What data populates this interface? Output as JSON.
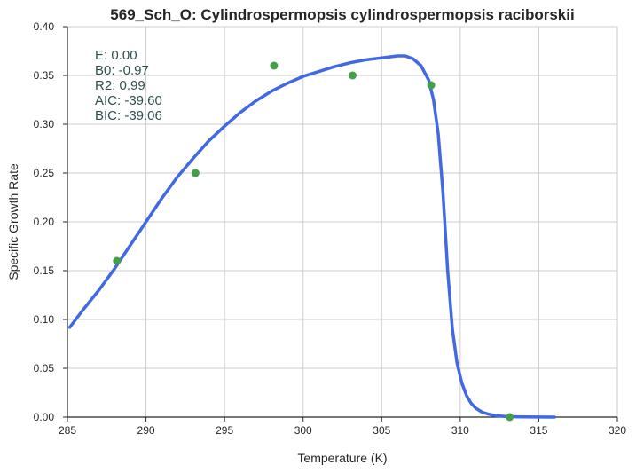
{
  "chart_data": {
    "type": "line",
    "title": "569_Sch_O: Cylindrospermopsis cylindrospermopsis raciborskii",
    "xlabel": "Temperature (K)",
    "ylabel": "Specific Growth Rate",
    "xlim": [
      285,
      320
    ],
    "ylim": [
      0.0,
      0.4
    ],
    "xticks": [
      285,
      290,
      295,
      300,
      305,
      310,
      315,
      320
    ],
    "xtick_labels": [
      "285",
      "290",
      "295",
      "300",
      "305",
      "310",
      "315",
      "320"
    ],
    "yticks": [
      0.0,
      0.05,
      0.1,
      0.15,
      0.2,
      0.25,
      0.3,
      0.35,
      0.4
    ],
    "ytick_labels": [
      "0.00",
      "0.05",
      "0.10",
      "0.15",
      "0.20",
      "0.25",
      "0.30",
      "0.35",
      "0.40"
    ],
    "grid": true,
    "annotations": [
      "E:  0.00",
      "B0:  -0.97",
      "R2:  0.99",
      "AIC: -39.60",
      "BIC: -39.06"
    ],
    "series": [
      {
        "kind": "scatter",
        "color": "#43a047",
        "x": [
          288.15,
          293.15,
          298.15,
          303.15,
          308.15,
          313.15
        ],
        "y": [
          0.16,
          0.25,
          0.36,
          0.35,
          0.34,
          0.0
        ]
      },
      {
        "kind": "line",
        "color": "#4169e1",
        "x": [
          285.15,
          286.0,
          287.0,
          288.0,
          289.0,
          290.0,
          291.0,
          292.0,
          293.0,
          294.0,
          295.0,
          296.0,
          297.0,
          298.0,
          299.0,
          300.0,
          301.0,
          302.0,
          303.0,
          304.0,
          305.0,
          305.5,
          306.0,
          306.5,
          307.0,
          307.5,
          308.0,
          308.3,
          308.6,
          308.9,
          309.2,
          309.5,
          309.8,
          310.1,
          310.4,
          310.7,
          311.0,
          311.4,
          311.8,
          312.3,
          313.0,
          314.0,
          315.0,
          316.0
        ],
        "y": [
          0.092,
          0.11,
          0.13,
          0.152,
          0.176,
          0.2,
          0.224,
          0.246,
          0.265,
          0.283,
          0.298,
          0.312,
          0.324,
          0.334,
          0.342,
          0.349,
          0.354,
          0.359,
          0.363,
          0.366,
          0.368,
          0.369,
          0.37,
          0.37,
          0.367,
          0.36,
          0.345,
          0.325,
          0.29,
          0.23,
          0.15,
          0.09,
          0.055,
          0.035,
          0.022,
          0.014,
          0.009,
          0.005,
          0.003,
          0.0015,
          0.0005,
          0.0002,
          0.0001,
          0.0
        ]
      }
    ]
  }
}
